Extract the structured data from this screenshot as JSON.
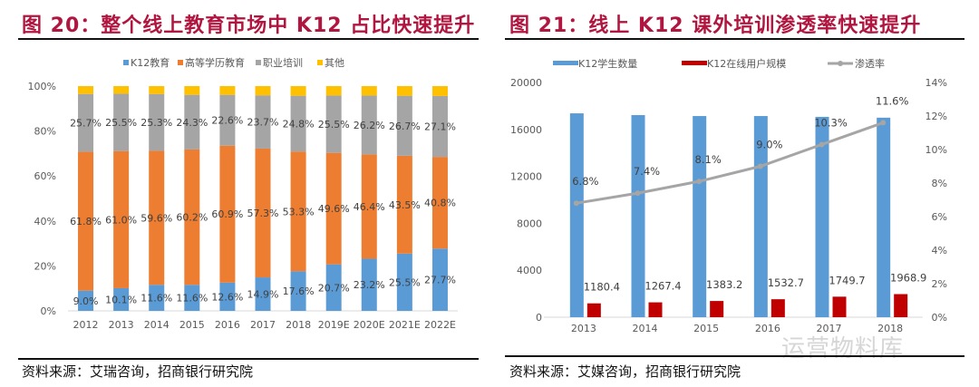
{
  "left": {
    "title": "图 20：整个线上教育市场中 K12 占比快速提升",
    "source": "资料来源：艾瑞咨询，招商银行研究院"
  },
  "right": {
    "title": "图 21：线上 K12 课外培训渗透率快速提升",
    "source": "资料来源：艾媒咨询，招商银行研究院",
    "watermark": "运营物料库"
  },
  "colors": {
    "blue": "#5b9bd5",
    "orange": "#ed7d31",
    "gray": "#a5a5a5",
    "yellow": "#ffc000",
    "red": "#c00000",
    "title": "#b0163f"
  },
  "chart_data": [
    {
      "type": "bar",
      "stacked": true,
      "categories": [
        "2012",
        "2013",
        "2014",
        "2015",
        "2016",
        "2017",
        "2018",
        "2019E",
        "2020E",
        "2021E",
        "2022E"
      ],
      "series": [
        {
          "name": "K12教育",
          "values": [
            9.0,
            10.1,
            11.6,
            11.6,
            12.6,
            14.9,
            17.6,
            20.7,
            23.2,
            25.5,
            27.7
          ]
        },
        {
          "name": "高等学历教育",
          "values": [
            61.8,
            61.0,
            59.6,
            60.2,
            60.9,
            57.3,
            53.3,
            49.6,
            46.4,
            43.5,
            40.8
          ]
        },
        {
          "name": "职业培训",
          "values": [
            25.7,
            25.5,
            25.3,
            24.3,
            22.6,
            23.7,
            24.8,
            25.5,
            26.2,
            26.7,
            27.1
          ]
        },
        {
          "name": "其他",
          "values": [
            3.5,
            3.4,
            3.5,
            3.9,
            3.9,
            4.1,
            4.3,
            4.2,
            4.2,
            4.3,
            4.4
          ]
        }
      ],
      "ylim": [
        0,
        100
      ],
      "yticks": [
        "0%",
        "20%",
        "40%",
        "60%",
        "80%",
        "100%"
      ],
      "legend": "top"
    },
    {
      "type": "bar+line",
      "categories": [
        "2013",
        "2014",
        "2015",
        "2016",
        "2017",
        "2018"
      ],
      "series": [
        {
          "name": "K12学生数量",
          "axis": "left",
          "values": [
            17370,
            17220,
            17140,
            17140,
            17070,
            17000
          ]
        },
        {
          "name": "K12在线用户规模",
          "axis": "left",
          "values": [
            1180.4,
            1267.4,
            1383.2,
            1532.7,
            1749.7,
            1968.9
          ],
          "labels": [
            "1180.4",
            "1267.4",
            "1383.2",
            "1532.7",
            "1749.7",
            "1968.9"
          ]
        },
        {
          "name": "渗透率",
          "axis": "right",
          "type": "line",
          "values": [
            6.8,
            7.4,
            8.1,
            9.0,
            10.3,
            11.6
          ],
          "labels": [
            "6.8%",
            "7.4%",
            "8.1%",
            "9.0%",
            "10.3%",
            "11.6%"
          ]
        }
      ],
      "ylim": [
        0,
        20000
      ],
      "yticks": [
        "0",
        "4000",
        "8000",
        "12000",
        "16000",
        "20000"
      ],
      "y2lim": [
        0,
        14
      ],
      "y2ticks": [
        "0%",
        "2%",
        "4%",
        "6%",
        "8%",
        "10%",
        "12%",
        "14%"
      ],
      "legend": "top"
    }
  ]
}
